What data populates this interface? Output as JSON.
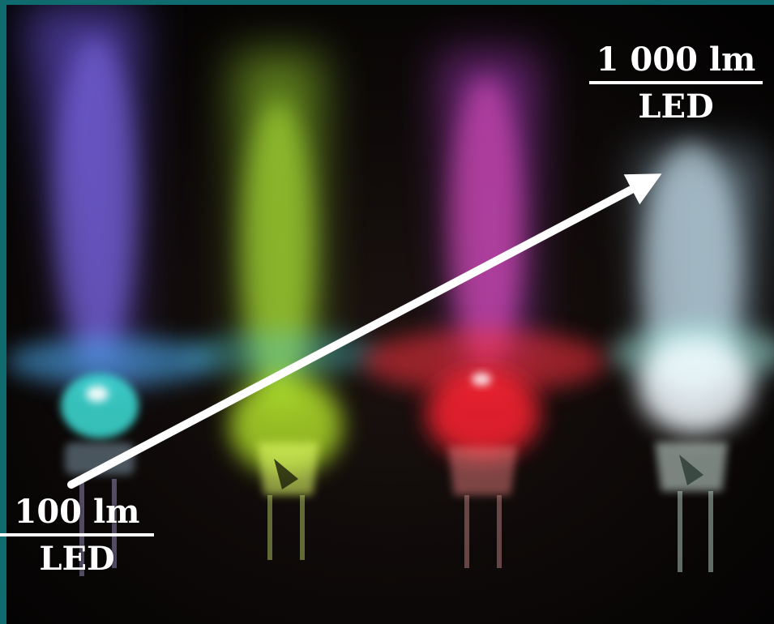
{
  "image": {
    "subject": "four-leds-glowing",
    "led_colors": [
      "#8a6cff",
      "#b8f23a",
      "#ff3a48",
      "#dff4ff"
    ],
    "frame_color": "#0f6b6e"
  },
  "labels": {
    "top": {
      "numerator": "1 000 lm",
      "denominator": "LED"
    },
    "bottom": {
      "numerator": "100 lm",
      "denominator": "LED"
    }
  },
  "arrow": {
    "color": "#ffffff"
  }
}
